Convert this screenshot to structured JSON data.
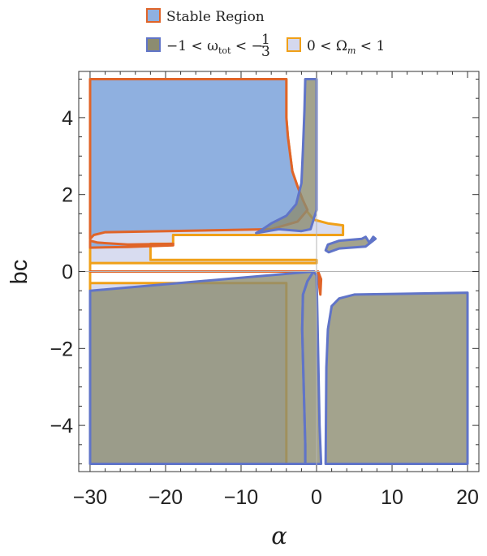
{
  "chart_data": {
    "type": "area",
    "title": "",
    "xlabel": "α",
    "ylabel": "bc",
    "xlim": [
      -31.5,
      21.5
    ],
    "ylim": [
      -5.2,
      5.2
    ],
    "x_ticks": [
      -30,
      -20,
      -10,
      0,
      10,
      20
    ],
    "x_tick_labels": [
      "−30",
      "−20",
      "−10",
      "0",
      "10",
      "20"
    ],
    "y_ticks": [
      -4,
      -2,
      0,
      2,
      4
    ],
    "y_tick_labels": [
      "−4",
      "−2",
      "0",
      "2",
      "4"
    ],
    "grid": false,
    "legend_position": "top-center",
    "legend": [
      {
        "label": "Stable Region",
        "fill": "#8fb0e0",
        "stroke": "#e06428"
      },
      {
        "label": "−1 < ω",
        "sub": "tot",
        "label_tail": " < −",
        "frac_num": "1",
        "frac_den": "3",
        "fill": "#8c8c70",
        "stroke": "#6074c8"
      },
      {
        "label": "0 < Ω",
        "sub": "m",
        "label_tail": " < 1",
        "fill": "#d4d8ee",
        "stroke": "#f0a018"
      }
    ],
    "colors": {
      "stable_fill": "#8fb0e0",
      "stable_stroke": "#e06428",
      "omega_fill": "#8c8c70",
      "omega_stroke": "#6074c8",
      "density_fill": "#d4d8ee",
      "density_stroke": "#f0a018",
      "overlap_fill": "#62737e"
    },
    "series": [
      {
        "kind": "density",
        "regions": [
          [
            [
              -30,
              5
            ],
            [
              -4,
              5
            ],
            [
              -4,
              4
            ],
            [
              -3.8,
              3.5
            ],
            [
              -3.2,
              2.6
            ],
            [
              -2.5,
              2.2
            ],
            [
              -1.8,
              1.8
            ],
            [
              -1.2,
              1.55
            ],
            [
              -0.4,
              1.35
            ],
            [
              1.5,
              1.25
            ],
            [
              3.5,
              1.2
            ],
            [
              3.5,
              0.95
            ],
            [
              -19,
              0.95
            ],
            [
              -19,
              0.72
            ],
            [
              -22,
              0.72
            ],
            [
              -22,
              0.3
            ],
            [
              0,
              0.3
            ],
            [
              0,
              0.22
            ],
            [
              -30,
              0.22
            ],
            [
              -30,
              -5
            ],
            [
              -4,
              -5
            ],
            [
              -4,
              -0.3
            ],
            [
              -30,
              -0.3
            ],
            [
              -30,
              5
            ]
          ]
        ]
      },
      {
        "kind": "stable",
        "regions": [
          [
            [
              -30,
              5
            ],
            [
              -4,
              5
            ],
            [
              -4,
              4
            ],
            [
              -3.8,
              3.5
            ],
            [
              -3.2,
              2.6
            ],
            [
              -2.5,
              2.2
            ],
            [
              -1.8,
              1.85
            ],
            [
              -1.2,
              1.6
            ],
            [
              -2.5,
              1.3
            ],
            [
              -6,
              1.1
            ],
            [
              -28,
              1.02
            ],
            [
              -29.5,
              0.95
            ],
            [
              -30,
              0.85
            ],
            [
              -30,
              5
            ]
          ],
          [
            [
              -30,
              0.8
            ],
            [
              -29,
              0.75
            ],
            [
              -25,
              0.7
            ],
            [
              -19,
              0.72
            ],
            [
              -19,
              0.68
            ],
            [
              -25,
              0.64
            ],
            [
              -30,
              0.62
            ],
            [
              -30,
              0.8
            ]
          ],
          [
            [
              -30,
              0
            ],
            [
              -0.6,
              0
            ],
            [
              -0.3,
              0
            ],
            [
              -30,
              0
            ]
          ],
          [
            [
              0.2,
              0
            ],
            [
              0.6,
              -0.2
            ],
            [
              0.5,
              -0.6
            ],
            [
              0.3,
              -0.3
            ],
            [
              0.2,
              0
            ]
          ]
        ]
      },
      {
        "kind": "omega",
        "regions": [
          [
            [
              -1.5,
              5
            ],
            [
              0,
              5
            ],
            [
              0,
              1.6
            ],
            [
              -0.8,
              1.1
            ],
            [
              -2,
              1.05
            ],
            [
              -5,
              1.1
            ],
            [
              -8,
              1.0
            ],
            [
              -7.5,
              1.05
            ],
            [
              -6,
              1.25
            ],
            [
              -4,
              1.45
            ],
            [
              -2.7,
              1.75
            ],
            [
              -2,
              2.3
            ],
            [
              -1.8,
              3.2
            ],
            [
              -1.6,
              4.2
            ],
            [
              -1.5,
              5
            ]
          ],
          [
            [
              -30,
              -5
            ],
            [
              -1.5,
              -5
            ],
            [
              -1.5,
              -4.5
            ],
            [
              -1.7,
              -3
            ],
            [
              -1.9,
              -1.5
            ],
            [
              -1.8,
              -0.6
            ],
            [
              -1.2,
              -0.25
            ],
            [
              -0.4,
              0
            ],
            [
              -30,
              -0.5
            ],
            [
              -30,
              -5
            ]
          ],
          [
            [
              -1.5,
              -5
            ],
            [
              0.6,
              -5
            ],
            [
              0.4,
              -4
            ],
            [
              0.25,
              -2.5
            ],
            [
              0.1,
              -1
            ],
            [
              0,
              -0.1
            ],
            [
              -0.4,
              0
            ],
            [
              -1.2,
              -0.25
            ],
            [
              -1.8,
              -0.6
            ],
            [
              -1.9,
              -1.5
            ],
            [
              -1.7,
              -3
            ],
            [
              -1.5,
              -4.5
            ],
            [
              -1.5,
              -5
            ]
          ],
          [
            [
              1.2,
              -5
            ],
            [
              20,
              -5
            ],
            [
              20,
              -0.55
            ],
            [
              5,
              -0.6
            ],
            [
              3,
              -0.7
            ],
            [
              2,
              -0.9
            ],
            [
              1.5,
              -1.5
            ],
            [
              1.3,
              -2.5
            ],
            [
              1.2,
              -5
            ]
          ],
          [
            [
              1.2,
              0.55
            ],
            [
              1.5,
              0.7
            ],
            [
              3,
              0.8
            ],
            [
              6,
              0.85
            ],
            [
              6.5,
              0.9
            ],
            [
              7,
              0.75
            ],
            [
              7.5,
              0.9
            ],
            [
              7.8,
              0.85
            ],
            [
              6.5,
              0.65
            ],
            [
              3,
              0.6
            ],
            [
              1.6,
              0.5
            ],
            [
              1.2,
              0.55
            ]
          ]
        ]
      }
    ]
  }
}
